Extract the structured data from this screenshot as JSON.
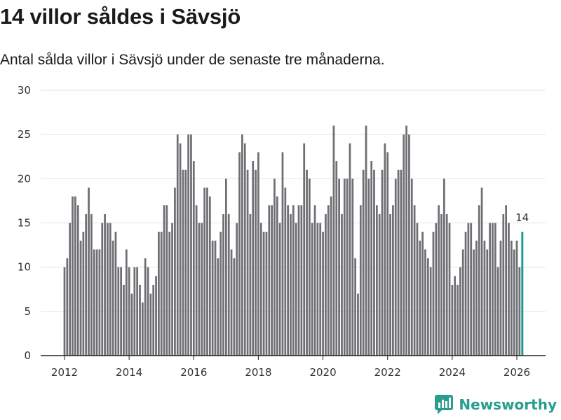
{
  "title": "14 villor såldes i Sävsjö",
  "subtitle": "Antal sålda villor i Sävsjö under de senaste tre månaderna.",
  "brand": {
    "name": "Newsworthy",
    "icon": "newsworthy-logo-icon",
    "color": "#2a9d8f"
  },
  "colors": {
    "bar": "#6f6e73",
    "highlight": "#1a9e8f",
    "grid": "#e2e2e2",
    "axis": "#222222"
  },
  "chart_data": {
    "type": "bar",
    "title": "14 villor såldes i Sävsjö",
    "xlabel": "",
    "ylabel": "",
    "ylim": [
      0,
      30
    ],
    "yticks": [
      0,
      5,
      10,
      15,
      20,
      25,
      30
    ],
    "xticks": [
      2012,
      2014,
      2016,
      2018,
      2020,
      2022,
      2024,
      2026
    ],
    "start": {
      "year": 2012,
      "month": 1
    },
    "values": [
      10,
      11,
      15,
      18,
      18,
      17,
      13,
      14,
      16,
      19,
      16,
      12,
      12,
      12,
      15,
      16,
      15,
      15,
      13,
      14,
      10,
      10,
      8,
      12,
      10,
      7,
      10,
      10,
      8,
      6,
      11,
      10,
      7,
      8,
      9,
      14,
      14,
      17,
      17,
      14,
      15,
      19,
      25,
      24,
      21,
      21,
      25,
      25,
      22,
      17,
      15,
      15,
      19,
      19,
      18,
      13,
      13,
      11,
      14,
      16,
      20,
      16,
      12,
      11,
      15,
      23,
      25,
      24,
      21,
      16,
      22,
      21,
      23,
      15,
      14,
      14,
      17,
      17,
      20,
      18,
      15,
      23,
      19,
      17,
      16,
      17,
      15,
      17,
      17,
      24,
      21,
      20,
      15,
      17,
      15,
      15,
      14,
      16,
      17,
      18,
      26,
      22,
      20,
      16,
      20,
      20,
      24,
      20,
      11,
      7,
      17,
      21,
      26,
      20,
      22,
      21,
      17,
      16,
      21,
      24,
      23,
      16,
      17,
      20,
      21,
      21,
      25,
      26,
      25,
      20,
      17,
      15,
      13,
      14,
      12,
      11,
      10,
      14,
      15,
      17,
      16,
      20,
      16,
      15,
      8,
      9,
      8,
      10,
      12,
      14,
      15,
      15,
      12,
      13,
      17,
      19,
      13,
      12,
      15,
      15,
      15,
      10,
      13,
      16,
      17,
      15,
      13,
      12,
      13,
      10,
      14
    ],
    "annotation": {
      "label": "14",
      "value": 14
    }
  }
}
